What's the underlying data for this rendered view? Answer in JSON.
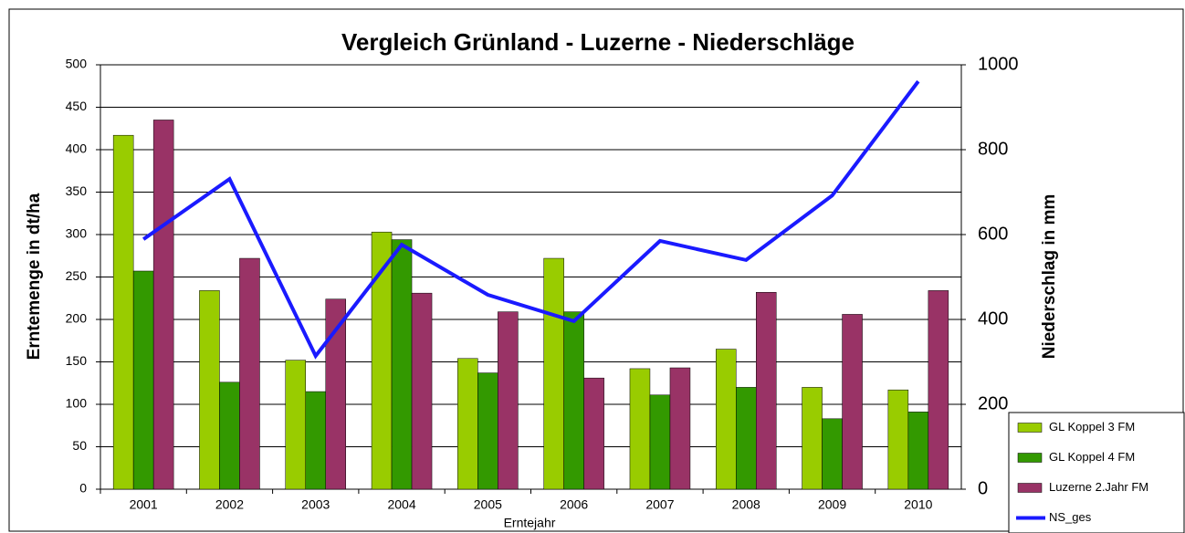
{
  "chart_data": {
    "type": "bar",
    "title": "Vergleich Grünland - Luzerne - Niederschläge",
    "x_label": "Erntejahr",
    "y_label": "Erntemenge in dt/ha",
    "y2_label": "Niederschlag in mm",
    "categories": [
      "2001",
      "2002",
      "2003",
      "2004",
      "2005",
      "2006",
      "2007",
      "2008",
      "2009",
      "2010"
    ],
    "series": [
      {
        "name": "GL Koppel 3 FM",
        "type": "bar",
        "color": "#99cc00",
        "values": [
          417,
          234,
          152,
          303,
          154,
          272,
          142,
          165,
          120,
          117
        ]
      },
      {
        "name": "GL Koppel 4 FM",
        "type": "bar",
        "color": "#339900",
        "values": [
          257,
          126,
          115,
          294,
          137,
          209,
          111,
          120,
          83,
          91
        ]
      },
      {
        "name": "Luzerne 2.Jahr FM",
        "type": "bar",
        "color": "#993366",
        "values": [
          435,
          272,
          224,
          231,
          209,
          131,
          143,
          232,
          206,
          234
        ]
      },
      {
        "name": "NS_ges",
        "type": "line",
        "axis": "y2",
        "color": "#1a1aff",
        "values": [
          589,
          731,
          314,
          576,
          458,
          396,
          585,
          540,
          692,
          961
        ]
      }
    ],
    "ylim": [
      0,
      500
    ],
    "yticks": [
      0,
      50,
      100,
      150,
      200,
      250,
      300,
      350,
      400,
      450,
      500
    ],
    "y2lim": [
      0,
      1000
    ],
    "y2ticks": [
      0,
      200,
      400,
      600,
      800,
      1000
    ],
    "grid": true,
    "legend": "bottom-right"
  }
}
